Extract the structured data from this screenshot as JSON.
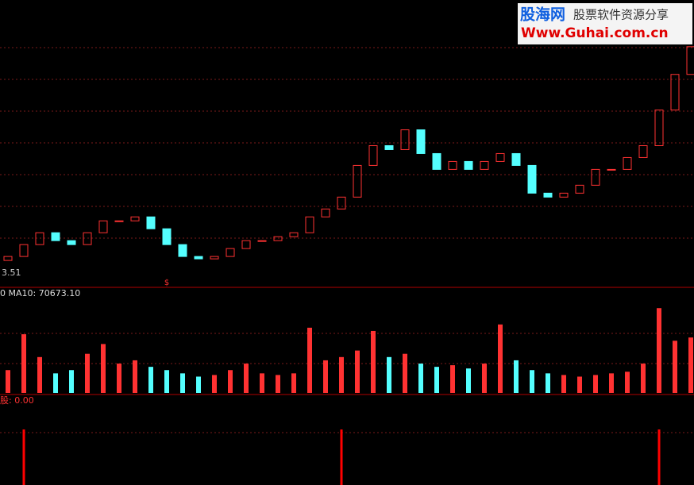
{
  "watermark": {
    "site": "股海网",
    "slogan": "股票软件资源分享",
    "url": "Www.Guhai.com.cn"
  },
  "chart_data": [
    {
      "type": "candlestick",
      "low_label": "3.51",
      "marker": "$",
      "open": [
        3.51,
        3.56,
        3.71,
        3.86,
        3.76,
        3.71,
        3.86,
        4.01,
        4.01,
        4.06,
        3.91,
        3.71,
        3.56,
        3.53,
        3.56,
        3.66,
        3.76,
        3.76,
        3.81,
        3.86,
        4.06,
        4.16,
        4.31,
        4.71,
        4.96,
        4.91,
        5.16,
        4.86,
        4.66,
        4.76,
        4.66,
        4.76,
        4.86,
        4.71,
        4.36,
        4.31,
        4.36,
        4.46,
        4.66,
        4.66,
        4.81,
        4.96,
        5.41,
        5.86
      ],
      "close": [
        3.56,
        3.71,
        3.86,
        3.76,
        3.71,
        3.86,
        4.01,
        4.01,
        4.06,
        3.91,
        3.71,
        3.56,
        3.53,
        3.56,
        3.66,
        3.76,
        3.76,
        3.81,
        3.86,
        4.06,
        4.16,
        4.31,
        4.71,
        4.96,
        4.91,
        5.16,
        4.86,
        4.66,
        4.76,
        4.66,
        4.76,
        4.86,
        4.71,
        4.36,
        4.31,
        4.36,
        4.46,
        4.66,
        4.66,
        4.81,
        4.96,
        5.41,
        5.86,
        6.21
      ],
      "ylim": [
        3.2,
        6.8
      ],
      "up_color": "#ff3232",
      "down_color": "#54ffff"
    },
    {
      "type": "bar",
      "label": "0 MA10: 70673.10",
      "values": [
        70000,
        180000,
        110000,
        60000,
        70000,
        120000,
        150000,
        90000,
        100000,
        80000,
        70000,
        60000,
        50000,
        55000,
        70000,
        90000,
        60000,
        55000,
        60000,
        200000,
        100000,
        110000,
        130000,
        190000,
        110000,
        120000,
        90000,
        80000,
        85000,
        75000,
        90000,
        210000,
        100000,
        70000,
        60000,
        55000,
        50000,
        55000,
        60000,
        65000,
        90000,
        260000,
        160000,
        170000
      ],
      "ylim": [
        0,
        280000
      ]
    },
    {
      "type": "bar",
      "label": "股: 0.00",
      "values": [
        0,
        1,
        0,
        0,
        0,
        0,
        0,
        0,
        0,
        0,
        0,
        0,
        0,
        0,
        0,
        0,
        0,
        0,
        0,
        0,
        0,
        1,
        0,
        0,
        0,
        0,
        0,
        0,
        0,
        0,
        0,
        0,
        0,
        0,
        0,
        0,
        0,
        0,
        0,
        0,
        0,
        1,
        0,
        0
      ],
      "ylim": [
        0,
        1.3
      ],
      "color": "#ff0000"
    }
  ]
}
